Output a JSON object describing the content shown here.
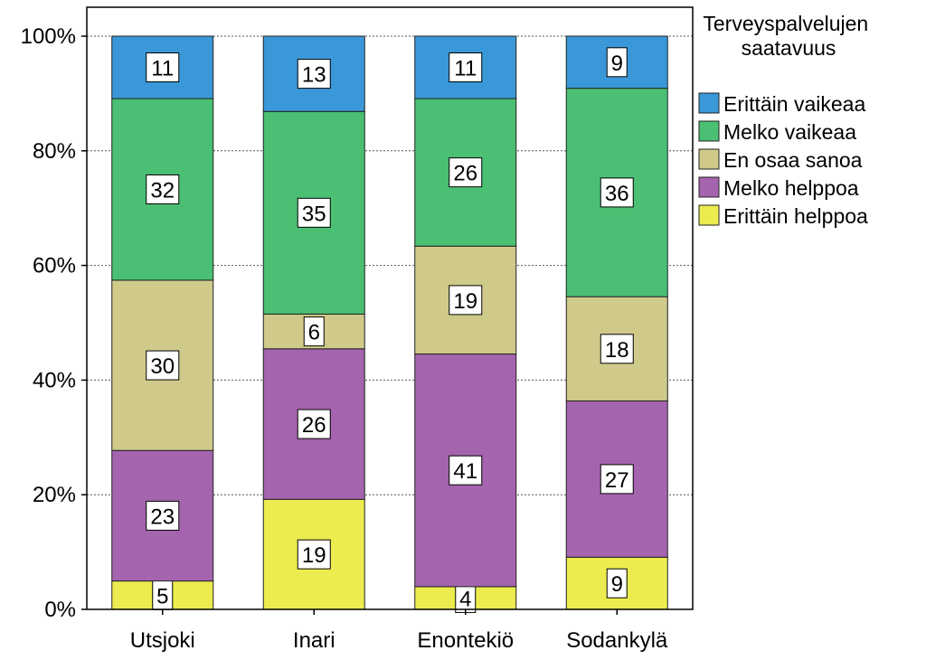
{
  "chart_data": {
    "type": "bar",
    "stacked": true,
    "percent": true,
    "categories": [
      "Utsjoki",
      "Inari",
      "Enontekiö",
      "Sodankylä"
    ],
    "series": [
      {
        "name": "Erittäin helppoa",
        "color": "#ecec50",
        "values": [
          5,
          19,
          4,
          9
        ]
      },
      {
        "name": "Melko helppoa",
        "color": "#a564ae",
        "values": [
          23,
          26,
          41,
          27
        ]
      },
      {
        "name": "En osaa sanoa",
        "color": "#cfca8a",
        "values": [
          30,
          6,
          19,
          18
        ]
      },
      {
        "name": "Melko vaikeaa",
        "color": "#4bbf73",
        "values": [
          32,
          35,
          26,
          36
        ]
      },
      {
        "name": "Erittäin vaikeaa",
        "color": "#3a98d8",
        "values": [
          11,
          13,
          11,
          9
        ]
      }
    ],
    "ylim": [
      0,
      100
    ],
    "yticks": [
      "0%",
      "20%",
      "40%",
      "60%",
      "80%",
      "100%"
    ],
    "grid": "horizontal-dashed",
    "legend_title": "Terveyspalvelujen saatavuus",
    "legend_placement": "right"
  }
}
